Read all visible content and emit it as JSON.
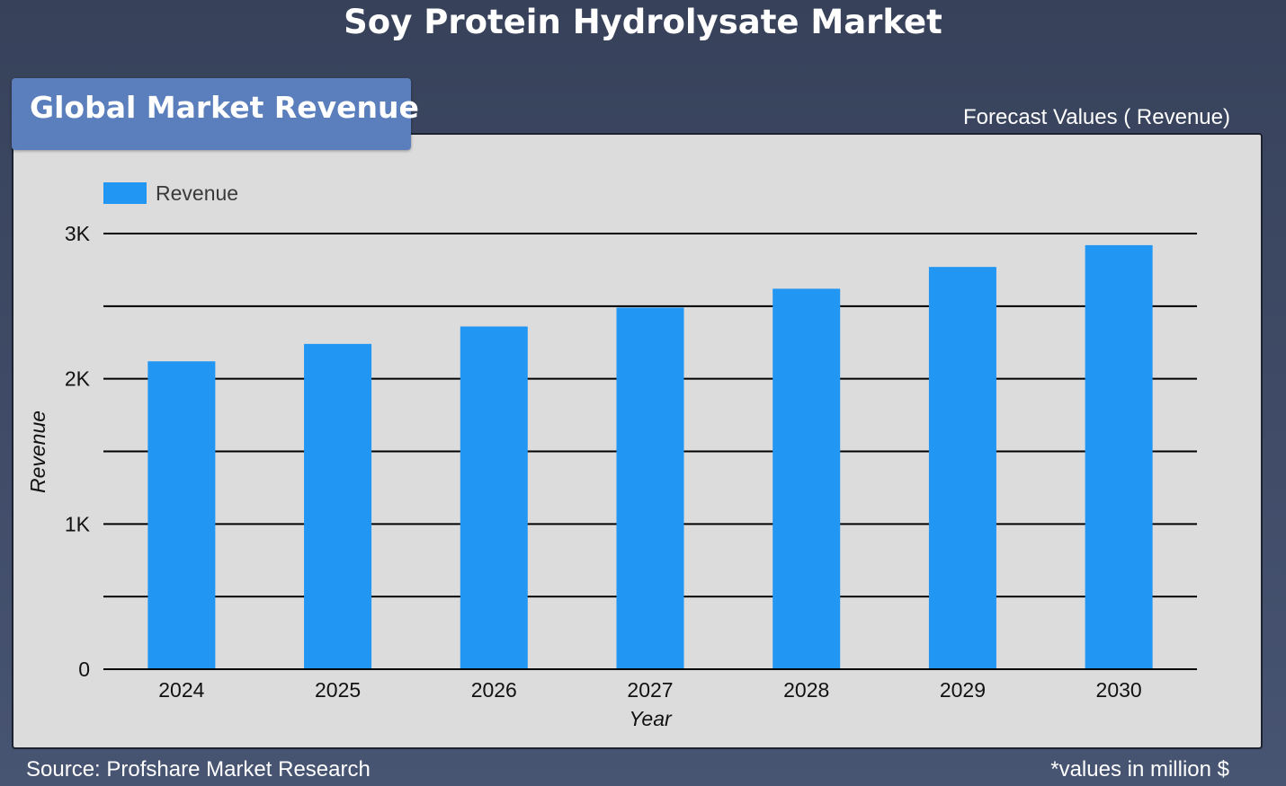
{
  "header": {
    "title": "Soy Protein Hydrolysate Market"
  },
  "panel": {
    "tab_label": "Global Market Revenue",
    "forecast_label": "Forecast Values ( Revenue)"
  },
  "footer": {
    "source": "Source: Profshare Market Research",
    "units_note": "*values in million $"
  },
  "colors": {
    "bar": "#2196f3",
    "panel_bg": "#dcdcdc",
    "tab_bg": "#5b7fbc",
    "gridline": "#000000"
  },
  "chart_data": {
    "type": "bar",
    "title": "",
    "xlabel": "Year",
    "ylabel": "Revenue",
    "categories": [
      "2024",
      "2025",
      "2026",
      "2027",
      "2028",
      "2029",
      "2030"
    ],
    "series": [
      {
        "name": "Revenue",
        "values": [
          2120,
          2240,
          2360,
          2490,
          2620,
          2770,
          2920
        ]
      }
    ],
    "ylim": [
      0,
      3000
    ],
    "yticks": [
      {
        "value": 0,
        "label": "0"
      },
      {
        "value": 1000,
        "label": "1K"
      },
      {
        "value": 2000,
        "label": "2K"
      },
      {
        "value": 3000,
        "label": "3K"
      }
    ],
    "minor_gridlines": [
      500,
      1500,
      2500
    ],
    "grid": true,
    "legend_position": "top-left"
  }
}
